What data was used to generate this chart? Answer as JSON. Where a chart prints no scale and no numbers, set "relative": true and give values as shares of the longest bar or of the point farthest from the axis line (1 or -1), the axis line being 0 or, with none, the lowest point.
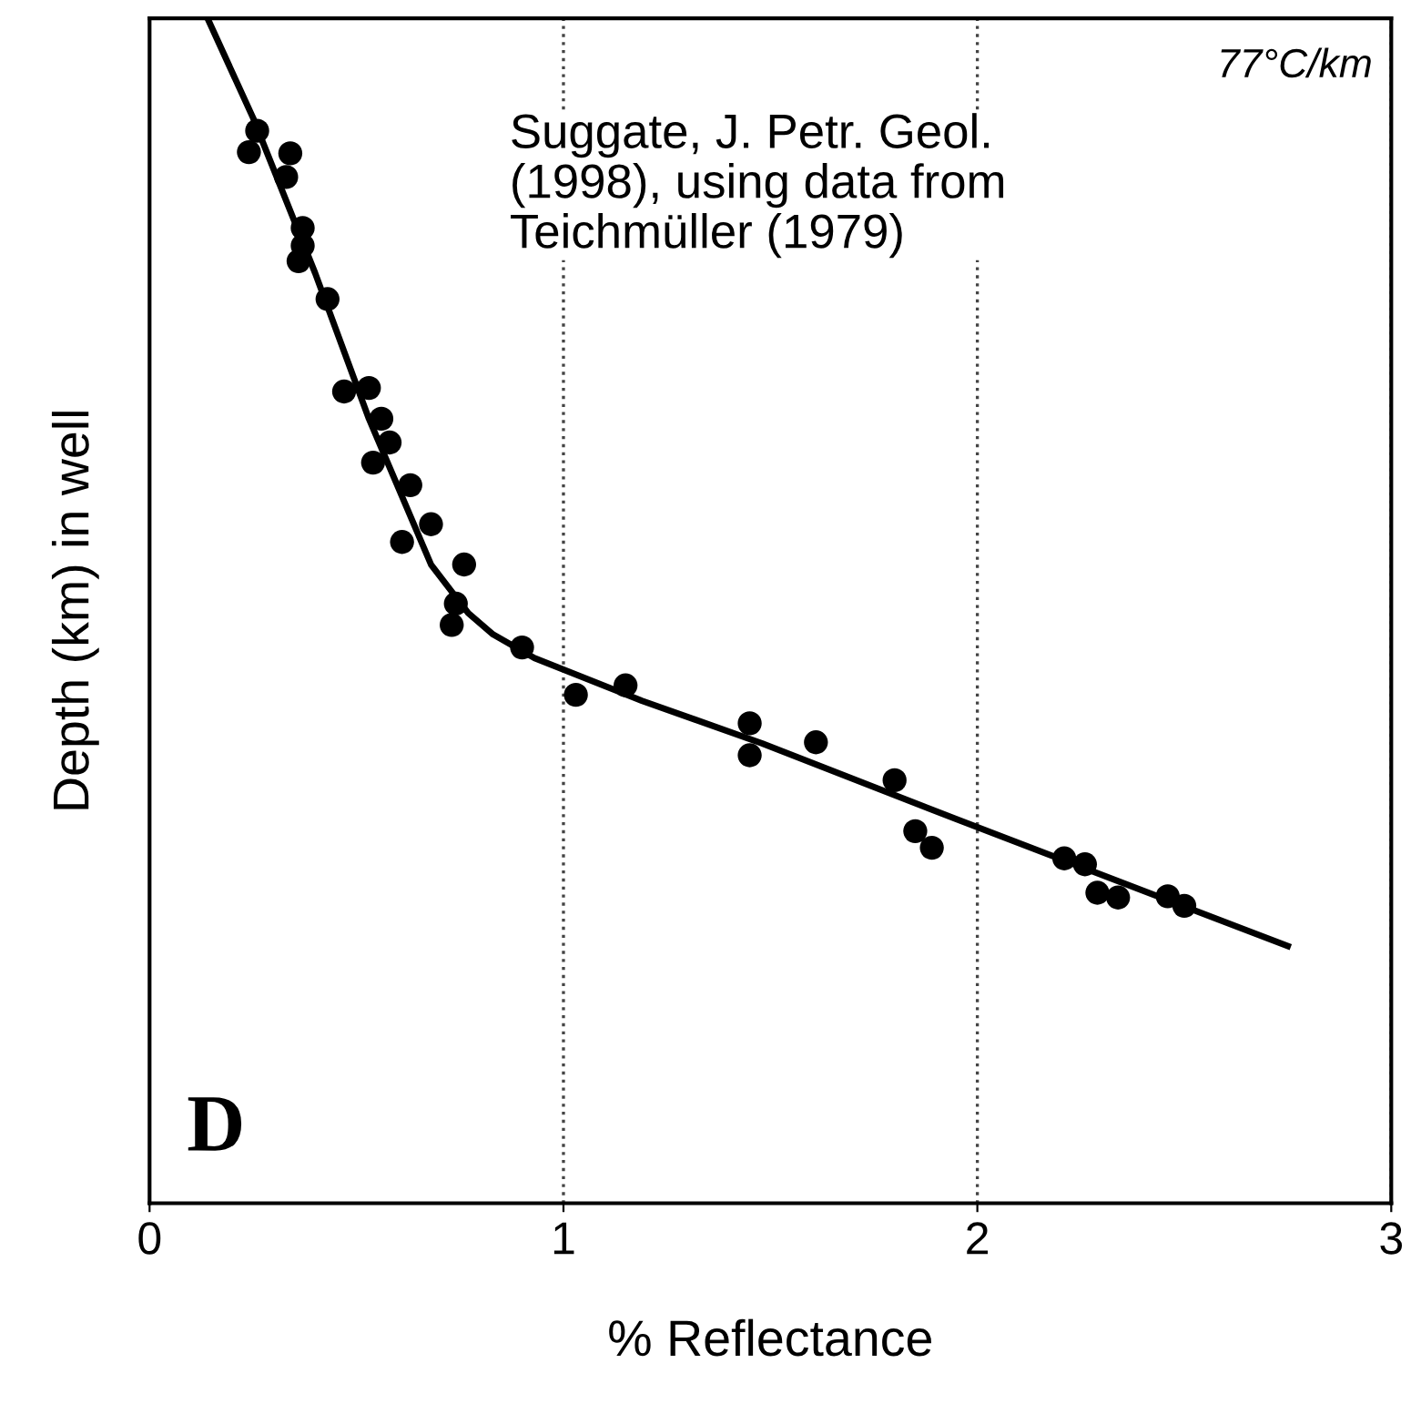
{
  "chart_data": {
    "type": "scatter",
    "xlabel": "% Reflectance",
    "ylabel": "Depth (km) in well",
    "relative": true,
    "xlim": [
      0,
      3
    ],
    "xticks": [
      0,
      1,
      2,
      3
    ],
    "grid": "x",
    "annotations": [
      "77°C/km",
      "Suggate, J. Petr. Geol.\n(1998), using data from\nTeichmüller (1979)",
      "D"
    ],
    "series": [
      {
        "marker": "circle",
        "color": "#000000",
        "x": [
          0.26,
          0.24,
          0.34,
          0.33,
          0.37,
          0.37,
          0.36,
          0.43,
          0.47,
          0.53,
          0.56,
          0.58,
          0.54,
          0.63,
          0.68,
          0.61,
          0.76,
          0.74,
          0.73,
          0.9,
          1.03,
          1.15,
          1.45,
          1.45,
          1.61,
          1.8,
          1.85,
          1.89,
          2.21,
          2.26,
          2.29,
          2.34,
          2.46,
          2.5
        ],
        "values": [
          0.905,
          0.887,
          0.886,
          0.866,
          0.823,
          0.808,
          0.795,
          0.763,
          0.685,
          0.688,
          0.662,
          0.642,
          0.625,
          0.606,
          0.573,
          0.558,
          0.539,
          0.506,
          0.488,
          0.469,
          0.429,
          0.437,
          0.405,
          0.378,
          0.389,
          0.357,
          0.314,
          0.3,
          0.291,
          0.286,
          0.262,
          0.258,
          0.259,
          0.251
        ]
      },
      {
        "type": "line",
        "color": "#000000",
        "line_style": "solid",
        "x": [
          0.14,
          0.25,
          0.4,
          0.53,
          0.68,
          0.77,
          0.83,
          0.93,
          1.19,
          1.48,
          1.95,
          2.75
        ],
        "values": [
          1.0,
          0.916,
          0.785,
          0.662,
          0.539,
          0.498,
          0.48,
          0.46,
          0.424,
          0.388,
          0.324,
          0.217
        ]
      }
    ]
  }
}
